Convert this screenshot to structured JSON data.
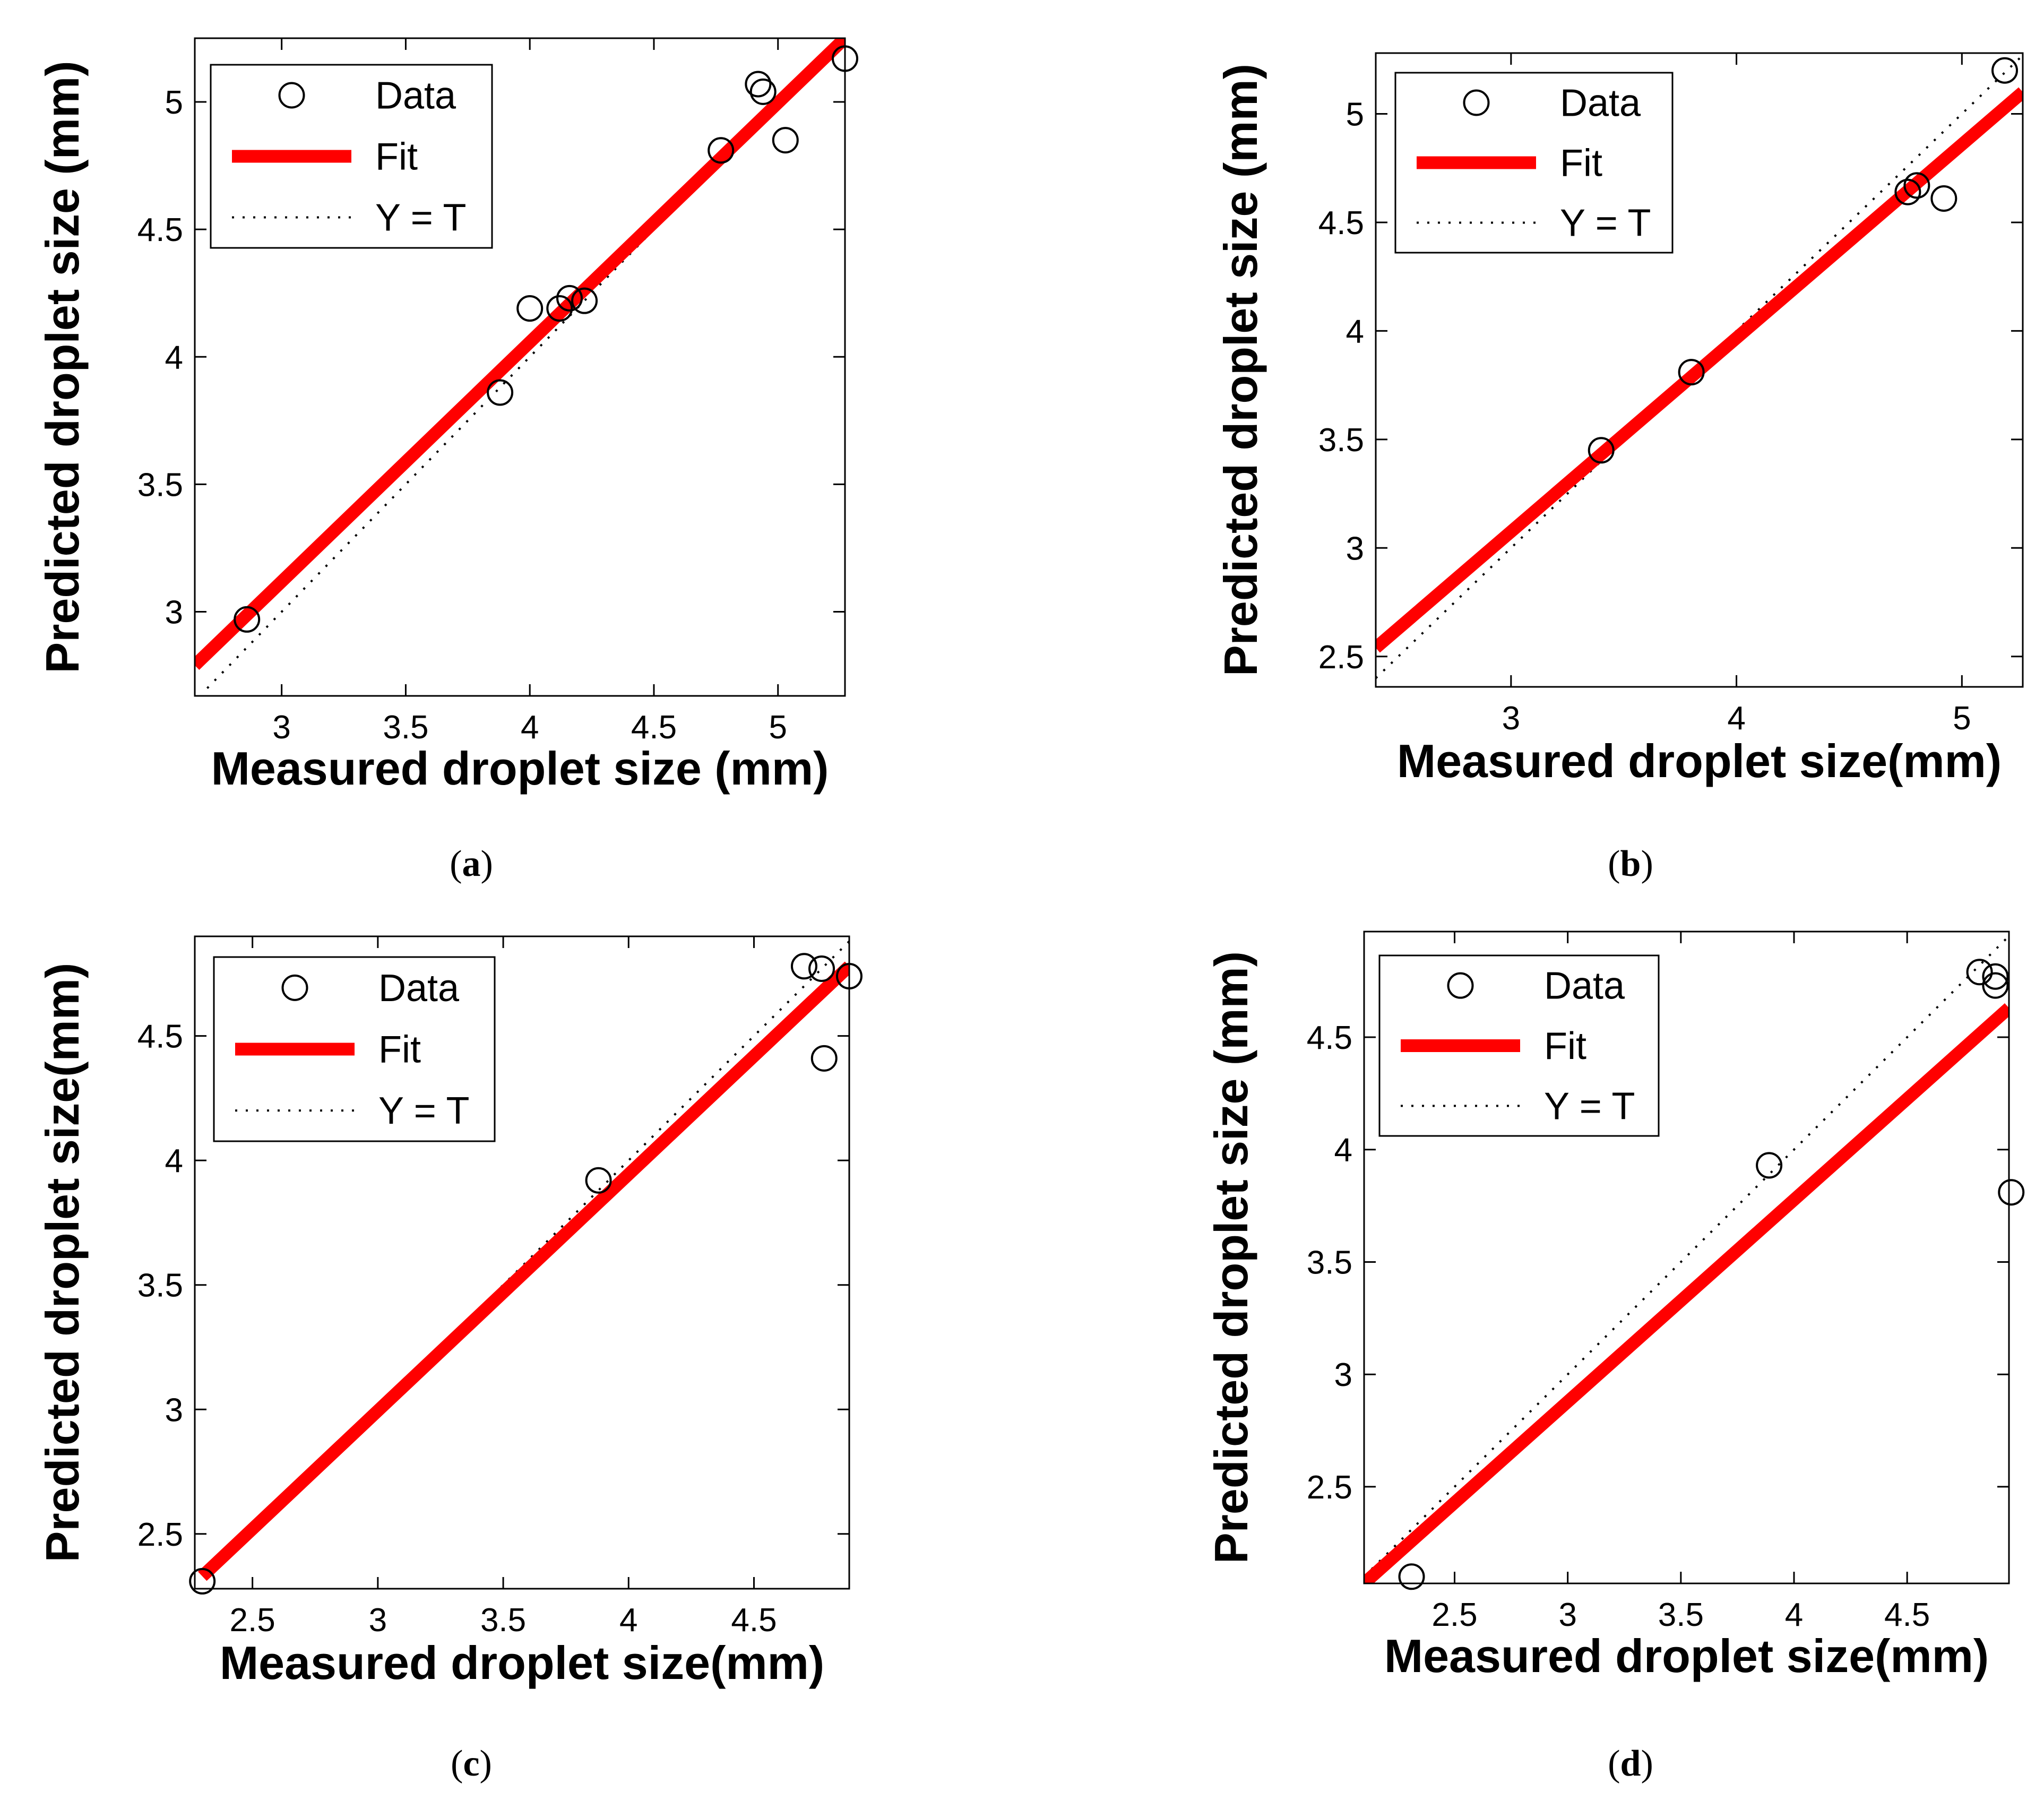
{
  "colors": {
    "data_marker": "#000000",
    "fit_line": "#ff0000",
    "reference_line": "#000000",
    "axes": "#000000",
    "background": "#ffffff"
  },
  "chart_data": [
    {
      "panel": "(a)",
      "type": "scatter",
      "xlabel": "Measured droplet size (mm)",
      "ylabel": "Predicted droplet size (mm)",
      "xlim": [
        2.65,
        5.27
      ],
      "ylim": [
        2.67,
        5.25
      ],
      "xticks": [
        "3",
        "3.5",
        "4",
        "4.5",
        "5"
      ],
      "yticks": [
        "3",
        "3.5",
        "4",
        "4.5",
        "5"
      ],
      "grid": false,
      "legend": {
        "position": "top-left",
        "entries": [
          "Data",
          "Fit",
          "Y = T"
        ]
      },
      "series": [
        {
          "name": "Data",
          "style": "open-circle",
          "points": [
            [
              2.86,
              2.97
            ],
            [
              3.88,
              3.86
            ],
            [
              4.0,
              4.19
            ],
            [
              4.12,
              4.19
            ],
            [
              4.16,
              4.23
            ],
            [
              4.22,
              4.22
            ],
            [
              4.77,
              4.81
            ],
            [
              4.92,
              5.07
            ],
            [
              4.94,
              5.04
            ],
            [
              5.03,
              4.85
            ],
            [
              5.27,
              5.17
            ]
          ]
        },
        {
          "name": "Fit",
          "style": "line",
          "points": [
            [
              2.65,
              2.79
            ],
            [
              5.27,
              5.25
            ]
          ]
        },
        {
          "name": "Y = T",
          "style": "dotted-line",
          "points": [
            [
              2.7,
              2.7
            ],
            [
              5.25,
              5.25
            ]
          ]
        }
      ]
    },
    {
      "panel": "(b)",
      "type": "scatter",
      "xlabel": "Measured droplet size(mm)",
      "ylabel": "Predicted droplet size (mm)",
      "xlim": [
        2.4,
        5.27
      ],
      "ylim": [
        2.36,
        5.28
      ],
      "xticks": [
        "3",
        "4",
        "5"
      ],
      "yticks": [
        "2.5",
        "3",
        "3.5",
        "4",
        "4.5",
        "5"
      ],
      "grid": false,
      "legend": {
        "position": "top-left",
        "entries": [
          "Data",
          "Fit",
          "Y = T"
        ]
      },
      "series": [
        {
          "name": "Data",
          "style": "open-circle",
          "points": [
            [
              3.4,
              3.45
            ],
            [
              3.8,
              3.81
            ],
            [
              4.76,
              4.64
            ],
            [
              4.8,
              4.67
            ],
            [
              4.92,
              4.61
            ],
            [
              5.19,
              5.2
            ]
          ]
        },
        {
          "name": "Fit",
          "style": "line",
          "points": [
            [
              2.4,
              2.54
            ],
            [
              5.27,
              5.1
            ]
          ]
        },
        {
          "name": "Y = T",
          "style": "dotted-line",
          "points": [
            [
              2.4,
              2.4
            ],
            [
              5.27,
              5.27
            ]
          ]
        }
      ]
    },
    {
      "panel": "(c)",
      "type": "scatter",
      "xlabel": "Measured droplet size(mm)",
      "ylabel": "Predicted droplet size(mm)",
      "xlim": [
        2.27,
        4.88
      ],
      "ylim": [
        2.28,
        4.9
      ],
      "xticks": [
        "2.5",
        "3",
        "3.5",
        "4",
        "4.5"
      ],
      "yticks": [
        "2.5",
        "3",
        "3.5",
        "4",
        "4.5"
      ],
      "grid": false,
      "legend": {
        "position": "top-left",
        "entries": [
          "Data",
          "Fit",
          "Y = T"
        ]
      },
      "series": [
        {
          "name": "Data",
          "style": "open-circle",
          "points": [
            [
              2.3,
              2.31
            ],
            [
              3.88,
              3.92
            ],
            [
              4.7,
              4.78
            ],
            [
              4.77,
              4.77
            ],
            [
              4.78,
              4.41
            ],
            [
              4.88,
              4.74
            ]
          ]
        },
        {
          "name": "Fit",
          "style": "line",
          "points": [
            [
              2.3,
              2.33
            ],
            [
              4.88,
              4.78
            ]
          ]
        },
        {
          "name": "Y = T",
          "style": "dotted-line",
          "points": [
            [
              2.32,
              2.32
            ],
            [
              4.88,
              4.88
            ]
          ]
        }
      ]
    },
    {
      "panel": "(d)",
      "type": "scatter",
      "xlabel": "Measured droplet size(mm)",
      "ylabel": "Predicted droplet size (mm)",
      "xlim": [
        2.1,
        4.95
      ],
      "ylim": [
        2.07,
        4.97
      ],
      "xticks": [
        "2.5",
        "3",
        "3.5",
        "4",
        "4.5"
      ],
      "yticks": [
        "2.5",
        "3",
        "3.5",
        "4",
        "4.5"
      ],
      "grid": false,
      "legend": {
        "position": "top-left",
        "entries": [
          "Data",
          "Fit",
          "Y = T"
        ]
      },
      "series": [
        {
          "name": "Data",
          "style": "open-circle",
          "points": [
            [
              2.31,
              2.1
            ],
            [
              3.89,
              3.93
            ],
            [
              4.82,
              4.79
            ],
            [
              4.89,
              4.77
            ],
            [
              4.89,
              4.73
            ],
            [
              4.96,
              3.81
            ]
          ]
        },
        {
          "name": "Fit",
          "style": "line",
          "points": [
            [
              2.1,
              2.07
            ],
            [
              4.95,
              4.63
            ]
          ]
        },
        {
          "name": "Y = T",
          "style": "dotted-line",
          "points": [
            [
              2.1,
              2.1
            ],
            [
              4.95,
              4.95
            ]
          ]
        }
      ]
    }
  ]
}
